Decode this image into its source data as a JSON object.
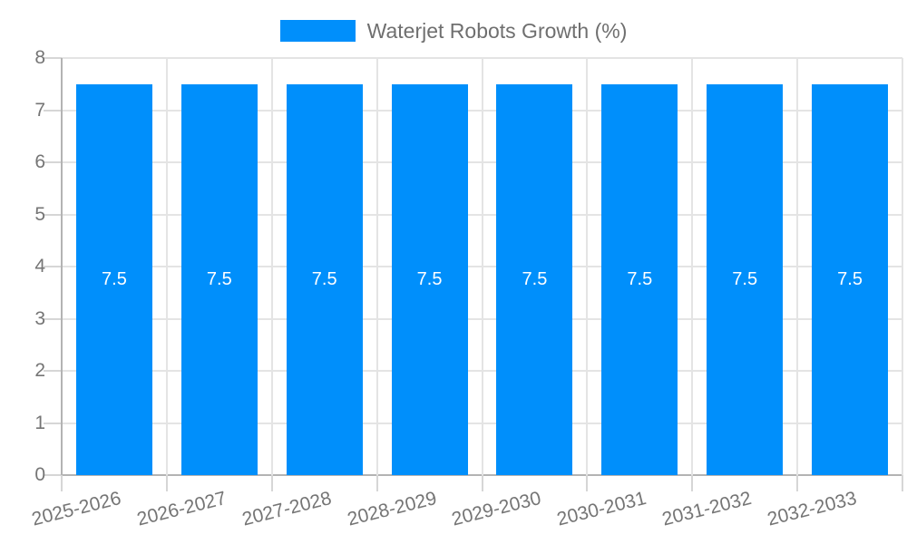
{
  "legend": {
    "items": [
      {
        "label": "Waterjet Robots Growth (%)",
        "color": "#008ffb"
      }
    ]
  },
  "chart_data": {
    "type": "bar",
    "title": "Waterjet Robots Growth (%)",
    "categories": [
      "2025-2026",
      "2026-2027",
      "2027-2028",
      "2028-2029",
      "2029-2030",
      "2030-2031",
      "2031-2032",
      "2032-2033"
    ],
    "series": [
      {
        "name": "Waterjet Robots Growth (%)",
        "values": [
          7.5,
          7.5,
          7.5,
          7.5,
          7.5,
          7.5,
          7.5,
          7.5
        ]
      }
    ],
    "value_labels": [
      "7.5",
      "7.5",
      "7.5",
      "7.5",
      "7.5",
      "7.5",
      "7.5",
      "7.5"
    ],
    "xlabel": "",
    "ylabel": "",
    "ylim": [
      0,
      8
    ],
    "yticks": [
      "0",
      "1",
      "2",
      "3",
      "4",
      "5",
      "6",
      "7",
      "8"
    ],
    "grid": true,
    "legend_position": "top",
    "x_label_rotation_deg": -14,
    "colors": {
      "bar": "#008ffb",
      "value_label": "#ffffff",
      "axis_label": "#757575",
      "legend_label": "#6f6f6f",
      "gridline": "#e4e4e4",
      "axis_line": "#b3b3b3",
      "tick": "#d6d6d6",
      "background": "#ffffff"
    }
  }
}
